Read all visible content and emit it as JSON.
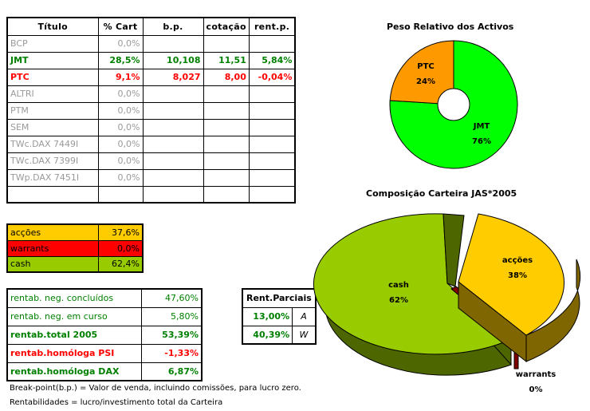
{
  "holdings": {
    "headers": [
      "Título",
      "% Cart",
      "b.p.",
      "cotação",
      "rent.p."
    ],
    "rows": [
      {
        "titulo": "BCP",
        "cart": "0,0%",
        "bp": "",
        "cotacao": "",
        "rent": "",
        "style": "muted"
      },
      {
        "titulo": "JMT",
        "cart": "28,5%",
        "bp": "10,108",
        "cotacao": "11,51",
        "rent": "5,84%",
        "style": "pos"
      },
      {
        "titulo": "PTC",
        "cart": "9,1%",
        "bp": "8,027",
        "cotacao": "8,00",
        "rent": "-0,04%",
        "style": "neg"
      },
      {
        "titulo": "ALTRI",
        "cart": "0,0%",
        "bp": "",
        "cotacao": "",
        "rent": "",
        "style": "muted"
      },
      {
        "titulo": "PTM",
        "cart": "0,0%",
        "bp": "",
        "cotacao": "",
        "rent": "",
        "style": "muted"
      },
      {
        "titulo": "SEM",
        "cart": "0,0%",
        "bp": "",
        "cotacao": "",
        "rent": "",
        "style": "muted"
      },
      {
        "titulo": "TWc.DAX 7449I",
        "cart": "0,0%",
        "bp": "",
        "cotacao": "",
        "rent": "",
        "style": "muted"
      },
      {
        "titulo": "TWc.DAX 7399I",
        "cart": "0,0%",
        "bp": "",
        "cotacao": "",
        "rent": "",
        "style": "muted"
      },
      {
        "titulo": "TWp.DAX 7451I",
        "cart": "0,0%",
        "bp": "",
        "cotacao": "",
        "rent": "",
        "style": "muted"
      },
      {
        "titulo": "",
        "cart": "",
        "bp": "",
        "cotacao": "",
        "rent": "",
        "style": "muted"
      }
    ]
  },
  "allocation": [
    {
      "label": "acções",
      "value": "37,6%",
      "color": "#ffcc00"
    },
    {
      "label": "warrants",
      "value": "0,0%",
      "color": "#ff0000"
    },
    {
      "label": "cash",
      "value": "62,4%",
      "color": "#99cc00"
    }
  ],
  "returns": [
    {
      "label": "rentab. neg. concluídos",
      "value": "47,60%"
    },
    {
      "label": "rentab. neg. em curso",
      "value": "5,80%"
    },
    {
      "label": "rentab.total 2005",
      "value": "53,39%"
    },
    {
      "label": "rentab.homóloga PSI",
      "value": "-1,33%"
    },
    {
      "label": "rentab.homóloga DAX",
      "value": "6,87%"
    }
  ],
  "partials": {
    "header": "Rent.Parciais",
    "rows": [
      {
        "value": "13,00%",
        "letter": "A"
      },
      {
        "value": "40,39%",
        "letter": "W"
      }
    ]
  },
  "notes": [
    "Break-point(b.p.) = Valor de venda, incluindo comissões, para lucro zero.",
    "Rentabilidades = lucro/investimento total da Carteira"
  ],
  "chart_data": [
    {
      "type": "pie",
      "variant": "doughnut",
      "title": "Peso Relativo dos Activos",
      "categories": [
        "JMT",
        "PTC"
      ],
      "values": [
        76,
        24
      ],
      "labels": [
        "76%",
        "24%"
      ],
      "colors": [
        "#00ff00",
        "#ff9900"
      ]
    },
    {
      "type": "pie",
      "variant": "3d-exploded",
      "title": "Composição Carteira JAS*2005",
      "categories": [
        "acções",
        "warrants",
        "cash"
      ],
      "values": [
        38,
        0,
        62
      ],
      "labels": [
        "38%",
        "0%",
        "62%"
      ],
      "colors": [
        "#ffcc00",
        "#800000",
        "#99cc00"
      ]
    }
  ],
  "colors": {
    "positive": "#008000",
    "negative": "#ff0000",
    "muted": "#9a9a9a"
  }
}
